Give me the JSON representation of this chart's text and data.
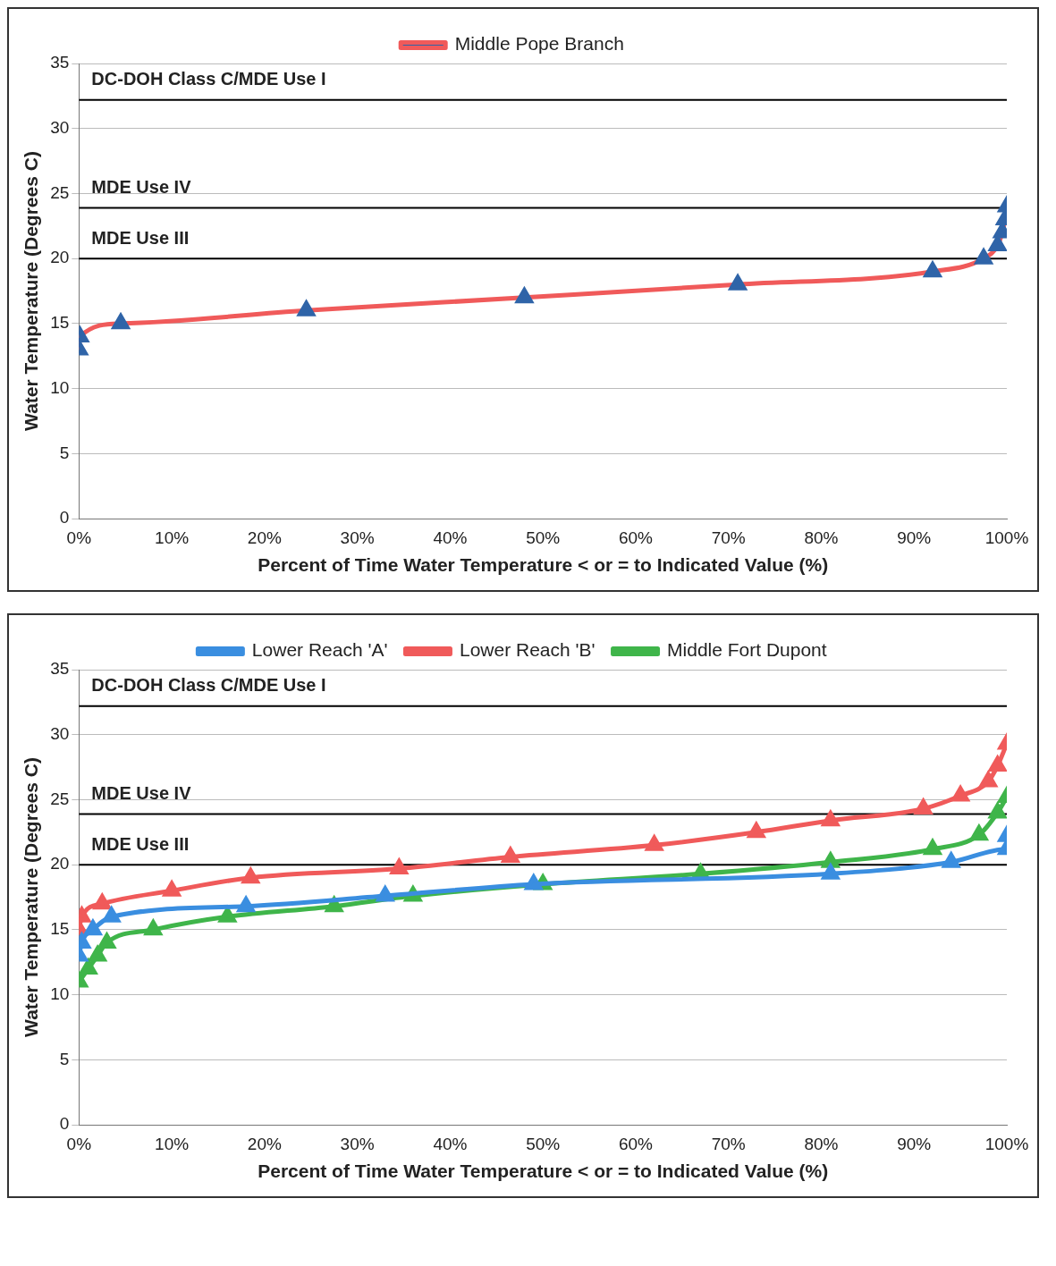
{
  "chart_data": [
    {
      "type": "line",
      "xlabel": "Percent of Time Water Temperature < or = to Indicated Value (%)",
      "ylabel": "Water Temperature (Degrees C)",
      "xlim": [
        0,
        100
      ],
      "xticks": [
        {
          "value": 0,
          "label": "0%"
        },
        {
          "value": 10,
          "label": "10%"
        },
        {
          "value": 20,
          "label": "20%"
        },
        {
          "value": 30,
          "label": "30%"
        },
        {
          "value": 40,
          "label": "40%"
        },
        {
          "value": 50,
          "label": "50%"
        },
        {
          "value": 60,
          "label": "60%"
        },
        {
          "value": 70,
          "label": "70%"
        },
        {
          "value": 80,
          "label": "80%"
        },
        {
          "value": 90,
          "label": "90%"
        },
        {
          "value": 100,
          "label": "100%"
        }
      ],
      "ylim": [
        0,
        35
      ],
      "yticks": [
        0,
        5,
        10,
        15,
        20,
        25,
        30,
        35
      ],
      "grid": "y",
      "legend": "top",
      "marker": "triangle",
      "series": [
        {
          "name": "Middle Pope Branch",
          "color": "#f05a5a",
          "colors": [
            "#2f64a8",
            "#2f64a8",
            "#2f64a8",
            "#2f64a8",
            "#2f64a8",
            "#2f64a8",
            "#2f64a8",
            "#2f64a8",
            "#2f64a8",
            "#2f64a8",
            "#2f64a8",
            "#2f64a8"
          ],
          "x": [
            0,
            0.1,
            4.5,
            24.5,
            48,
            71,
            92,
            97.5,
            99,
            99.5,
            99.8,
            100
          ],
          "values": [
            13,
            14,
            15,
            16,
            17,
            18,
            19,
            20,
            21,
            22,
            23,
            24
          ]
        }
      ],
      "ref_lines": [
        {
          "axis": "y",
          "value": 32.2,
          "label": "DC-DOH Class C/MDE Use I",
          "color": "#000000"
        },
        {
          "axis": "y",
          "value": 23.9,
          "label": "MDE Use IV",
          "color": "#000000"
        },
        {
          "axis": "y",
          "value": 20,
          "label": "MDE Use III",
          "color": "#000000"
        }
      ]
    },
    {
      "type": "line",
      "xlabel": "Percent of Time Water Temperature < or = to Indicated Value (%)",
      "ylabel": "Water Temperature (Degrees C)",
      "xlim": [
        0,
        100
      ],
      "xticks": [
        {
          "value": 0,
          "label": "0%"
        },
        {
          "value": 10,
          "label": "10%"
        },
        {
          "value": 20,
          "label": "20%"
        },
        {
          "value": 30,
          "label": "30%"
        },
        {
          "value": 40,
          "label": "40%"
        },
        {
          "value": 50,
          "label": "50%"
        },
        {
          "value": 60,
          "label": "60%"
        },
        {
          "value": 70,
          "label": "70%"
        },
        {
          "value": 80,
          "label": "80%"
        },
        {
          "value": 90,
          "label": "90%"
        },
        {
          "value": 100,
          "label": "100%"
        }
      ],
      "ylim": [
        0,
        35
      ],
      "yticks": [
        0,
        5,
        10,
        15,
        20,
        25,
        30,
        35
      ],
      "grid": "y",
      "legend": "top",
      "marker": "triangle",
      "series": [
        {
          "name": "Lower Reach 'A'",
          "color": "#3a8ee0",
          "x": [
            0,
            0.3,
            1.5,
            3.5,
            18,
            33,
            49,
            81,
            94,
            100,
            100
          ],
          "values": [
            13,
            14,
            15,
            16,
            16.8,
            17.6,
            18.5,
            19.3,
            20.2,
            21.2,
            22.2
          ]
        },
        {
          "name": "Lower Reach 'B'",
          "color": "#f05a5a",
          "x": [
            0,
            0.3,
            2.5,
            10,
            18.5,
            34.5,
            46.5,
            62,
            73,
            81,
            91,
            95,
            98,
            99,
            100
          ],
          "values": [
            15,
            16,
            17,
            18,
            19,
            19.7,
            20.6,
            21.5,
            22.5,
            23.4,
            24.3,
            25.3,
            26.4,
            27.6,
            29.3
          ]
        },
        {
          "name": "Middle Fort Dupont",
          "color": "#3fb54a",
          "x": [
            0,
            1,
            2,
            3,
            8,
            16,
            27.5,
            36,
            50,
            67,
            81,
            92,
            97,
            99,
            100
          ],
          "values": [
            11,
            12,
            13,
            14,
            15,
            16,
            16.8,
            17.6,
            18.5,
            19.3,
            20.2,
            21.2,
            22.3,
            24,
            25.2
          ]
        }
      ],
      "ref_lines": [
        {
          "axis": "y",
          "value": 32.2,
          "label": "DC-DOH Class C/MDE Use I",
          "color": "#000000"
        },
        {
          "axis": "y",
          "value": 23.9,
          "label": "MDE Use IV",
          "color": "#000000"
        },
        {
          "axis": "y",
          "value": 20,
          "label": "MDE Use III",
          "color": "#000000"
        }
      ]
    }
  ]
}
